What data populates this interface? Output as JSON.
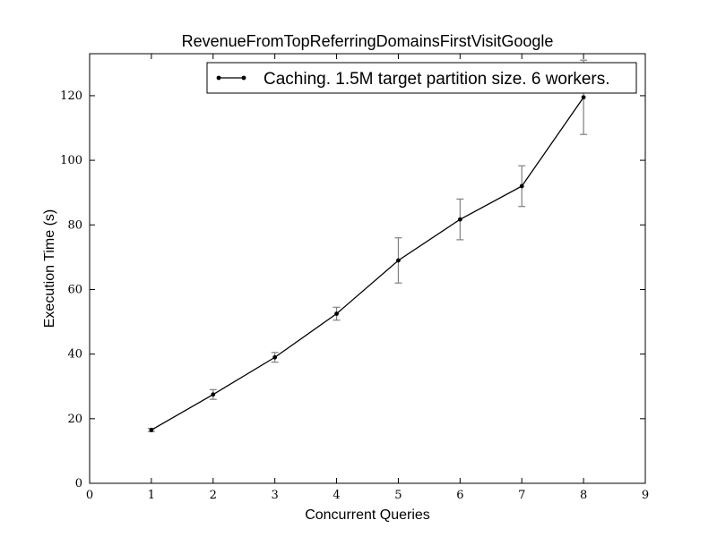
{
  "chart_data": {
    "type": "line",
    "title": "RevenueFromTopReferringDomainsFirstVisitGoogle",
    "xlabel": "Concurrent Queries",
    "ylabel": "Execution Time (s)",
    "xlim": [
      0,
      9
    ],
    "ylim": [
      0,
      133
    ],
    "xticks": [
      0,
      1,
      2,
      3,
      4,
      5,
      6,
      7,
      8,
      9
    ],
    "yticks": [
      0,
      20,
      40,
      60,
      80,
      100,
      120
    ],
    "grid": false,
    "legend_position": "top-right",
    "series": [
      {
        "name": "Caching. 1.5M target partition size. 6 workers.",
        "color": "#000000",
        "error_color": "#808080",
        "points": [
          {
            "x": 1,
            "y": 16.5,
            "err": 0.5
          },
          {
            "x": 2,
            "y": 27.5,
            "err": 1.5
          },
          {
            "x": 3,
            "y": 39.0,
            "err": 1.5
          },
          {
            "x": 4,
            "y": 52.5,
            "err": 2.0
          },
          {
            "x": 5,
            "y": 69.0,
            "err": 7.0
          },
          {
            "x": 6,
            "y": 81.7,
            "err": 6.3
          },
          {
            "x": 7,
            "y": 92.0,
            "err": 6.3
          },
          {
            "x": 8,
            "y": 119.5,
            "err": 11.5
          }
        ]
      }
    ]
  }
}
